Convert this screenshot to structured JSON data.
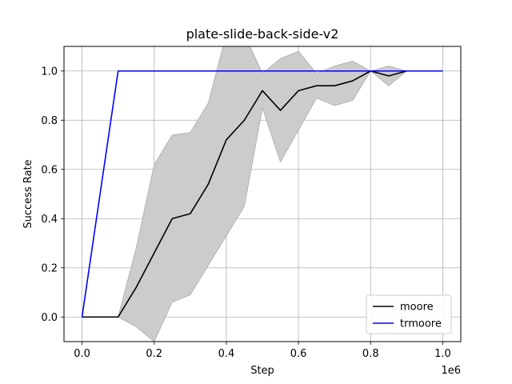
{
  "chart_data": {
    "type": "line",
    "title": "plate-slide-back-side-v2",
    "xlabel": "Step",
    "ylabel": "Success Rate",
    "x_scale_label": "1e6",
    "xlim": [
      -0.05,
      1.05
    ],
    "ylim": [
      -0.1,
      1.1
    ],
    "xticks": [
      0.0,
      0.2,
      0.4,
      0.6,
      0.8,
      1.0
    ],
    "xtick_labels": [
      "0.0",
      "0.2",
      "0.4",
      "0.6",
      "0.8",
      "1.0"
    ],
    "yticks": [
      0.0,
      0.2,
      0.4,
      0.6,
      0.8,
      1.0
    ],
    "ytick_labels": [
      "0.0",
      "0.2",
      "0.4",
      "0.6",
      "0.8",
      "1.0"
    ],
    "grid": true,
    "legend_position": "lower-right",
    "x": [
      0.0,
      0.05,
      0.1,
      0.15,
      0.2,
      0.25,
      0.3,
      0.35,
      0.4,
      0.45,
      0.5,
      0.55,
      0.6,
      0.65,
      0.7,
      0.75,
      0.8,
      0.85,
      0.9,
      0.95,
      1.0
    ],
    "series": [
      {
        "name": "moore",
        "color": "#000000",
        "values": [
          0.0,
          0.0,
          0.0,
          0.12,
          0.26,
          0.4,
          0.42,
          0.54,
          0.72,
          0.8,
          0.92,
          0.84,
          0.92,
          0.94,
          0.94,
          0.96,
          1.0,
          0.98,
          1.0,
          1.0,
          1.0
        ],
        "band_upper": [
          0.0,
          0.0,
          0.0,
          0.28,
          0.62,
          0.74,
          0.75,
          0.87,
          1.15,
          1.15,
          0.99,
          1.05,
          1.08,
          0.99,
          1.02,
          1.04,
          1.0,
          1.02,
          1.0,
          1.0,
          1.0
        ],
        "band_lower": [
          0.0,
          0.0,
          0.0,
          -0.04,
          -0.1,
          0.06,
          0.09,
          0.21,
          0.33,
          0.45,
          0.85,
          0.63,
          0.76,
          0.89,
          0.86,
          0.88,
          1.0,
          0.94,
          1.0,
          1.0,
          1.0
        ],
        "band_color": "#cccccc"
      },
      {
        "name": "trmoore",
        "color": "#0000ff",
        "values": [
          0.0,
          0.5,
          1.0,
          1.0,
          1.0,
          1.0,
          1.0,
          1.0,
          1.0,
          1.0,
          1.0,
          1.0,
          1.0,
          1.0,
          1.0,
          1.0,
          1.0,
          1.0,
          1.0,
          1.0,
          1.0
        ]
      }
    ]
  }
}
